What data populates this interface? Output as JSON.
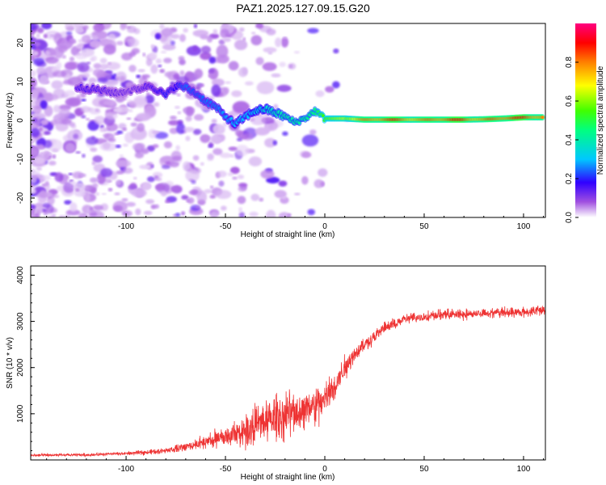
{
  "title": "PAZ1.2025.127.09.15.G20",
  "chart_data": [
    {
      "type": "heatmap",
      "title": "PAZ1.2025.127.09.15.G20",
      "xlabel": "Height of straight line (km)",
      "ylabel": "Frequency (Hz)",
      "xlim": [
        -148,
        111
      ],
      "ylim": [
        -25,
        25
      ],
      "x_ticks": [
        -100,
        -50,
        0,
        50,
        100
      ],
      "y_ticks": [
        -20,
        -10,
        0,
        10,
        20
      ],
      "colorbar": {
        "label": "Normalized spectral amplitude",
        "range": [
          0,
          1
        ],
        "ticks": [
          0.0,
          0.2,
          0.4,
          0.6,
          0.8
        ]
      },
      "ridge": {
        "x": [
          -125,
          -115,
          -105,
          -95,
          -88,
          -80,
          -75,
          -70,
          -65,
          -60,
          -55,
          -50,
          -45,
          -40,
          -35,
          -30,
          -25,
          -20,
          -15,
          -10,
          -5,
          0,
          5,
          10,
          20,
          30,
          40,
          50,
          60,
          70,
          80,
          90,
          100,
          110
        ],
        "frequency": [
          8.5,
          8,
          7,
          8,
          9,
          6.5,
          9,
          8.5,
          7,
          5,
          3.5,
          1,
          -1,
          1,
          2.5,
          3,
          2,
          1,
          -0.5,
          0.5,
          2.5,
          0.5,
          0.5,
          0.5,
          0.2,
          0.2,
          0.2,
          0.2,
          0.2,
          0.2,
          0.3,
          0.5,
          0.8,
          0.8
        ],
        "amplitude": [
          0.15,
          0.15,
          0.12,
          0.12,
          0.15,
          0.2,
          0.18,
          0.25,
          0.22,
          0.25,
          0.25,
          0.28,
          0.3,
          0.3,
          0.32,
          0.35,
          0.38,
          0.4,
          0.4,
          0.42,
          0.45,
          0.55,
          0.6,
          0.65,
          0.75,
          0.85,
          0.8,
          0.75,
          0.85,
          0.85,
          0.75,
          0.85,
          0.85,
          0.8
        ]
      },
      "grid": false
    },
    {
      "type": "line",
      "xlabel": "Height of straight line (km)",
      "ylabel": "SNR (10 * v/v)",
      "xlim": [
        -148,
        111
      ],
      "ylim": [
        0,
        4200
      ],
      "x_ticks": [
        -100,
        -50,
        0,
        50,
        100
      ],
      "y_ticks": [
        1000,
        2000,
        3000,
        4000
      ],
      "color": "#ee3333",
      "trend": {
        "x": [
          -148,
          -120,
          -100,
          -85,
          -75,
          -65,
          -55,
          -45,
          -35,
          -25,
          -15,
          -5,
          0,
          5,
          10,
          15,
          20,
          30,
          40,
          50,
          60,
          70,
          80,
          90,
          100,
          111
        ],
        "snr": [
          100,
          110,
          140,
          180,
          240,
          330,
          450,
          560,
          750,
          900,
          1050,
          1150,
          1300,
          1600,
          2000,
          2300,
          2500,
          2850,
          3050,
          3100,
          3150,
          3150,
          3180,
          3200,
          3200,
          3250
        ]
      },
      "spread": {
        "x": [
          -148,
          -100,
          -80,
          -60,
          -50,
          -40,
          -30,
          -20,
          -10,
          0,
          10,
          20,
          40,
          70,
          111
        ],
        "snr_spread": [
          40,
          50,
          80,
          200,
          350,
          500,
          650,
          700,
          650,
          550,
          350,
          200,
          150,
          150,
          150
        ]
      },
      "grid": false
    }
  ]
}
